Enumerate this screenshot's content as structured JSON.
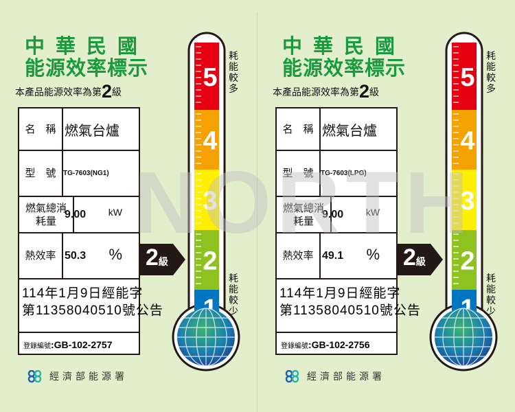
{
  "common": {
    "title_line1": "中華民國",
    "title_line2": "能源效率標示",
    "grade_sentence_prefix": "本產品能源效率為第",
    "grade_sentence_suffix": "級",
    "label_name": "名　稱",
    "label_model": "型　號",
    "label_gas": "燃氣總消耗量",
    "label_eff": "熱效率",
    "label_reg": "登錄編號",
    "unit_power": "kW",
    "unit_percent": "%",
    "side_top": "耗能較多",
    "side_bottom": "耗能較少",
    "agency": "經濟部能源署",
    "scale": [
      "5",
      "4",
      "3",
      "2",
      "1"
    ],
    "scale_colors": [
      "#e60012",
      "#f5a200",
      "#fff000",
      "#8dc21f",
      "#0075c2"
    ],
    "title_color": "#1a9a3e",
    "watermark": "NORTH"
  },
  "labels": [
    {
      "grade": "2",
      "product": "燃氣台爐",
      "model": "TG-7603(NG1)",
      "gas": "9.00",
      "efficiency": "50.3",
      "announce1": "114年1月9日經能字",
      "announce2": "第11358040510號公告",
      "reg_no": ":GB-102-2757"
    },
    {
      "grade": "2",
      "product": "燃氣台爐",
      "model": "TG-7603(LPG)",
      "gas": "9.00",
      "efficiency": "49.1",
      "announce1": "114年1月9日經能字",
      "announce2": "第11358040510號公告",
      "reg_no": ":GB-102-2756"
    }
  ]
}
